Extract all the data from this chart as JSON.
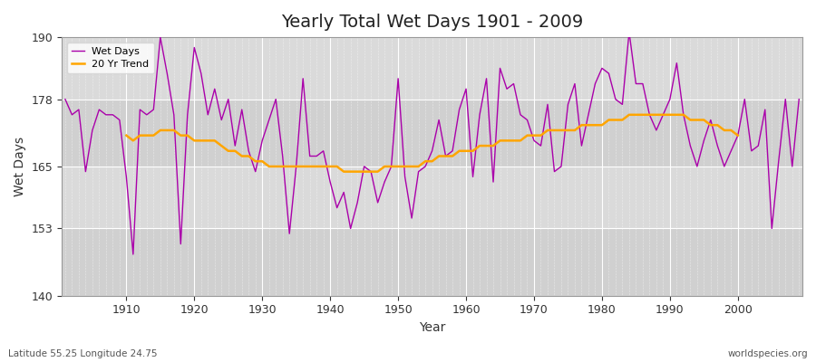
{
  "title": "Yearly Total Wet Days 1901 - 2009",
  "xlabel": "Year",
  "ylabel": "Wet Days",
  "subtitle": "Latitude 55.25 Longitude 24.75",
  "watermark": "worldspecies.org",
  "wet_days_color": "#AA00AA",
  "trend_color": "#FFA500",
  "bg_color": "#FFFFFF",
  "plot_bg_color": "#E8E8E8",
  "band_color_light": "#E0E0E0",
  "band_color_dark": "#D0D0D0",
  "ylim": [
    140,
    190
  ],
  "yticks": [
    140,
    153,
    165,
    178,
    190
  ],
  "years": [
    1901,
    1902,
    1903,
    1904,
    1905,
    1906,
    1907,
    1908,
    1909,
    1910,
    1911,
    1912,
    1913,
    1914,
    1915,
    1916,
    1917,
    1918,
    1919,
    1920,
    1921,
    1922,
    1923,
    1924,
    1925,
    1926,
    1927,
    1928,
    1929,
    1930,
    1931,
    1932,
    1933,
    1934,
    1935,
    1936,
    1937,
    1938,
    1939,
    1940,
    1941,
    1942,
    1943,
    1944,
    1945,
    1946,
    1947,
    1948,
    1949,
    1950,
    1951,
    1952,
    1953,
    1954,
    1955,
    1956,
    1957,
    1958,
    1959,
    1960,
    1961,
    1962,
    1963,
    1964,
    1965,
    1966,
    1967,
    1968,
    1969,
    1970,
    1971,
    1972,
    1973,
    1974,
    1975,
    1976,
    1977,
    1978,
    1979,
    1980,
    1981,
    1982,
    1983,
    1984,
    1985,
    1986,
    1987,
    1988,
    1989,
    1990,
    1991,
    1992,
    1993,
    1994,
    1995,
    1996,
    1997,
    1998,
    1999,
    2000,
    2001,
    2002,
    2003,
    2004,
    2005,
    2006,
    2007,
    2008,
    2009
  ],
  "wet_days": [
    178,
    175,
    176,
    164,
    172,
    176,
    175,
    175,
    174,
    163,
    148,
    176,
    175,
    176,
    190,
    183,
    175,
    150,
    175,
    188,
    183,
    175,
    180,
    174,
    178,
    169,
    176,
    168,
    164,
    170,
    174,
    178,
    167,
    152,
    165,
    182,
    167,
    167,
    168,
    162,
    157,
    160,
    153,
    158,
    165,
    164,
    158,
    162,
    165,
    182,
    163,
    155,
    164,
    165,
    168,
    174,
    167,
    168,
    176,
    180,
    163,
    175,
    182,
    162,
    184,
    180,
    181,
    175,
    174,
    170,
    169,
    177,
    164,
    165,
    177,
    181,
    169,
    175,
    181,
    184,
    183,
    178,
    177,
    191,
    181,
    181,
    175,
    172,
    175,
    178,
    185,
    175,
    169,
    165,
    170,
    174,
    169,
    165,
    168,
    171,
    178,
    168,
    169,
    176,
    153,
    166,
    178,
    165,
    178
  ],
  "trend": [
    null,
    null,
    null,
    null,
    null,
    null,
    null,
    null,
    null,
    171,
    170,
    171,
    171,
    171,
    172,
    172,
    172,
    171,
    171,
    170,
    170,
    170,
    170,
    169,
    168,
    168,
    167,
    167,
    166,
    166,
    165,
    165,
    165,
    165,
    165,
    165,
    165,
    165,
    165,
    165,
    165,
    164,
    164,
    164,
    164,
    164,
    164,
    165,
    165,
    165,
    165,
    165,
    165,
    166,
    166,
    167,
    167,
    167,
    168,
    168,
    168,
    169,
    169,
    169,
    170,
    170,
    170,
    170,
    171,
    171,
    171,
    172,
    172,
    172,
    172,
    172,
    173,
    173,
    173,
    173,
    174,
    174,
    174,
    175,
    175,
    175,
    175,
    175,
    175,
    175,
    175,
    175,
    174,
    174,
    174,
    173,
    173,
    172,
    172,
    171,
    null,
    null,
    null,
    null,
    null,
    null,
    null,
    null,
    null
  ],
  "hbands": [
    [
      140,
      153,
      "#D8D8D8"
    ],
    [
      153,
      165,
      "#E4E4E4"
    ],
    [
      165,
      178,
      "#D8D8D8"
    ],
    [
      178,
      190,
      "#E4E4E4"
    ]
  ]
}
